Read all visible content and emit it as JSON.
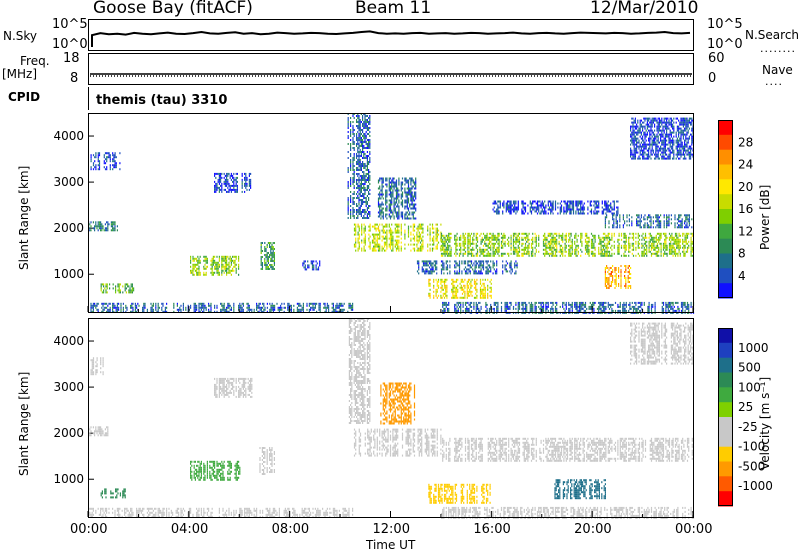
{
  "header": {
    "station": "Goose Bay (fitACF)",
    "beam": "Beam 11",
    "date": "12/Mar/2010"
  },
  "nsky_panel": {
    "left_label": "N.Sky",
    "left_ticks": [
      "10^5",
      "10^0"
    ],
    "right_label": "N.Search",
    "right_ticks": [
      "10^5",
      "10^0"
    ],
    "series_level": [
      0.55,
      0.62,
      0.58,
      0.6,
      0.57,
      0.63,
      0.6,
      0.58,
      0.61,
      0.64,
      0.6,
      0.59,
      0.62,
      0.66,
      0.61,
      0.6,
      0.63,
      0.65,
      0.6,
      0.62,
      0.58,
      0.6,
      0.64,
      0.62,
      0.6,
      0.61,
      0.63,
      0.62,
      0.6,
      0.59,
      0.61,
      0.63,
      0.66,
      0.68,
      0.62,
      0.6,
      0.61,
      0.6,
      0.62,
      0.63,
      0.6,
      0.61,
      0.62,
      0.6,
      0.61,
      0.63,
      0.62,
      0.6,
      0.61,
      0.62,
      0.64,
      0.61,
      0.6,
      0.62,
      0.63,
      0.61,
      0.6,
      0.62,
      0.64,
      0.63,
      0.62,
      0.61,
      0.63,
      0.62,
      0.6,
      0.61,
      0.63,
      0.64,
      0.66,
      0.62,
      0.61,
      0.63
    ]
  },
  "freq_panel": {
    "left_label": "Freq.",
    "left_unit": "[MHz]",
    "left_ticks": [
      "18",
      "8"
    ],
    "right_label": "Nave",
    "right_ticks": [
      "60",
      "0"
    ]
  },
  "cpid": {
    "label": "CPID",
    "value": "themis (tau) 3310"
  },
  "power_panel": {
    "ylabel": "Slant Range [km]",
    "yticks": [
      1000,
      2000,
      3000,
      4000
    ],
    "ylim": [
      180,
      4500
    ],
    "colorbar_label": "Power [dB]",
    "colorbar_ticks": [
      "28",
      "24",
      "20",
      "16",
      "12",
      "8",
      "4"
    ],
    "colorbar_colors": [
      "#ff0000",
      "#ff4a00",
      "#ff8f00",
      "#ffbf00",
      "#ffe800",
      "#c8dc00",
      "#7fcf00",
      "#3fa83f",
      "#2c8a55",
      "#1e6f8a",
      "#1f4fc0",
      "#1010ff"
    ]
  },
  "velocity_panel": {
    "ylabel": "Slant Range [km]",
    "yticks": [
      1000,
      2000,
      3000,
      4000
    ],
    "ylim": [
      180,
      4500
    ],
    "colorbar_label": "Velocity [m s⁻¹]",
    "colorbar_ticks": [
      "1000",
      "500",
      "100",
      "25",
      "-25",
      "-100",
      "-500",
      "-1000"
    ],
    "colorbar_colors": [
      "#1010a8",
      "#1e40c0",
      "#1e6f8a",
      "#2c8a55",
      "#3faa3f",
      "#7fd000",
      "#c8c8c8",
      "#c8c8c8",
      "#ffcc00",
      "#ff9a00",
      "#ff5a00",
      "#ff0000"
    ]
  },
  "time_axis": {
    "ticks": [
      "00:00",
      "04:00",
      "08:00",
      "12:00",
      "16:00",
      "20:00",
      "00:00"
    ],
    "label": "Time UT"
  },
  "chart_data": [
    {
      "type": "heatmap",
      "name": "power",
      "x_unit": "hours UT",
      "y_unit": "km",
      "value_unit": "dB",
      "xlim": [
        0,
        24
      ],
      "ylim": [
        180,
        4500
      ],
      "regions": [
        {
          "t0": 0.0,
          "t1": 1.2,
          "r0": 1950,
          "r1": 2150,
          "v": 10
        },
        {
          "t0": 0.1,
          "t1": 1.3,
          "r0": 3300,
          "r1": 3650,
          "v": 6
        },
        {
          "t0": 0.5,
          "t1": 1.8,
          "r0": 600,
          "r1": 800,
          "v": 14
        },
        {
          "t0": 0.0,
          "t1": 10.5,
          "r0": 180,
          "r1": 380,
          "v": 8
        },
        {
          "t0": 4.0,
          "t1": 6.0,
          "r0": 1000,
          "r1": 1400,
          "v": 16
        },
        {
          "t0": 5.0,
          "t1": 6.5,
          "r0": 2800,
          "r1": 3200,
          "v": 6
        },
        {
          "t0": 6.8,
          "t1": 7.4,
          "r0": 1100,
          "r1": 1700,
          "v": 12
        },
        {
          "t0": 8.5,
          "t1": 9.2,
          "r0": 1100,
          "r1": 1300,
          "v": 6
        },
        {
          "t0": 10.3,
          "t1": 11.2,
          "r0": 2200,
          "r1": 4500,
          "v": 8
        },
        {
          "t0": 10.5,
          "t1": 14.0,
          "r0": 1500,
          "r1": 2100,
          "v": 18
        },
        {
          "t0": 11.5,
          "t1": 13.0,
          "r0": 2200,
          "r1": 3100,
          "v": 8
        },
        {
          "t0": 13.5,
          "t1": 16.0,
          "r0": 500,
          "r1": 900,
          "v": 20
        },
        {
          "t0": 13.0,
          "t1": 17.0,
          "r0": 1000,
          "r1": 1300,
          "v": 8
        },
        {
          "t0": 14.0,
          "t1": 24.0,
          "r0": 1400,
          "r1": 1900,
          "v": 16
        },
        {
          "t0": 16.0,
          "t1": 21.0,
          "r0": 2300,
          "r1": 2600,
          "v": 6
        },
        {
          "t0": 20.5,
          "t1": 24.0,
          "r0": 2000,
          "r1": 2300,
          "v": 8
        },
        {
          "t0": 20.5,
          "t1": 21.5,
          "r0": 700,
          "r1": 1200,
          "v": 24
        },
        {
          "t0": 21.5,
          "t1": 24.0,
          "r0": 3500,
          "r1": 4400,
          "v": 6
        },
        {
          "t0": 14.0,
          "t1": 24.0,
          "r0": 180,
          "r1": 400,
          "v": 8
        }
      ]
    },
    {
      "type": "heatmap",
      "name": "velocity",
      "x_unit": "hours UT",
      "y_unit": "km",
      "value_unit": "m s^-1",
      "xlim": [
        0,
        24
      ],
      "ylim": [
        180,
        4500
      ],
      "regions": [
        {
          "t0": 0.0,
          "t1": 0.8,
          "r0": 1950,
          "r1": 2150,
          "v": 0
        },
        {
          "t0": 0.1,
          "t1": 0.6,
          "r0": 3300,
          "r1": 3650,
          "v": 0
        },
        {
          "t0": 0.5,
          "t1": 1.5,
          "r0": 600,
          "r1": 800,
          "v": 200
        },
        {
          "t0": 0.0,
          "t1": 10.5,
          "r0": 180,
          "r1": 380,
          "v": 0
        },
        {
          "t0": 4.0,
          "t1": 6.0,
          "r0": 1000,
          "r1": 1400,
          "v": 50
        },
        {
          "t0": 5.0,
          "t1": 6.5,
          "r0": 2800,
          "r1": 3200,
          "v": 0
        },
        {
          "t0": 6.8,
          "t1": 7.4,
          "r0": 1100,
          "r1": 1700,
          "v": 0
        },
        {
          "t0": 10.3,
          "t1": 11.2,
          "r0": 2200,
          "r1": 4500,
          "v": 0
        },
        {
          "t0": 10.5,
          "t1": 14.0,
          "r0": 1500,
          "r1": 2100,
          "v": 0
        },
        {
          "t0": 11.5,
          "t1": 13.0,
          "r0": 2200,
          "r1": 3100,
          "v": -150
        },
        {
          "t0": 13.5,
          "t1": 16.0,
          "r0": 500,
          "r1": 900,
          "v": -60
        },
        {
          "t0": 14.0,
          "t1": 24.0,
          "r0": 1400,
          "r1": 1900,
          "v": 0
        },
        {
          "t0": 18.5,
          "t1": 20.5,
          "r0": 600,
          "r1": 1000,
          "v": 300
        },
        {
          "t0": 21.5,
          "t1": 24.0,
          "r0": 3500,
          "r1": 4400,
          "v": 0
        },
        {
          "t0": 14.0,
          "t1": 24.0,
          "r0": 180,
          "r1": 400,
          "v": 0
        }
      ]
    }
  ]
}
